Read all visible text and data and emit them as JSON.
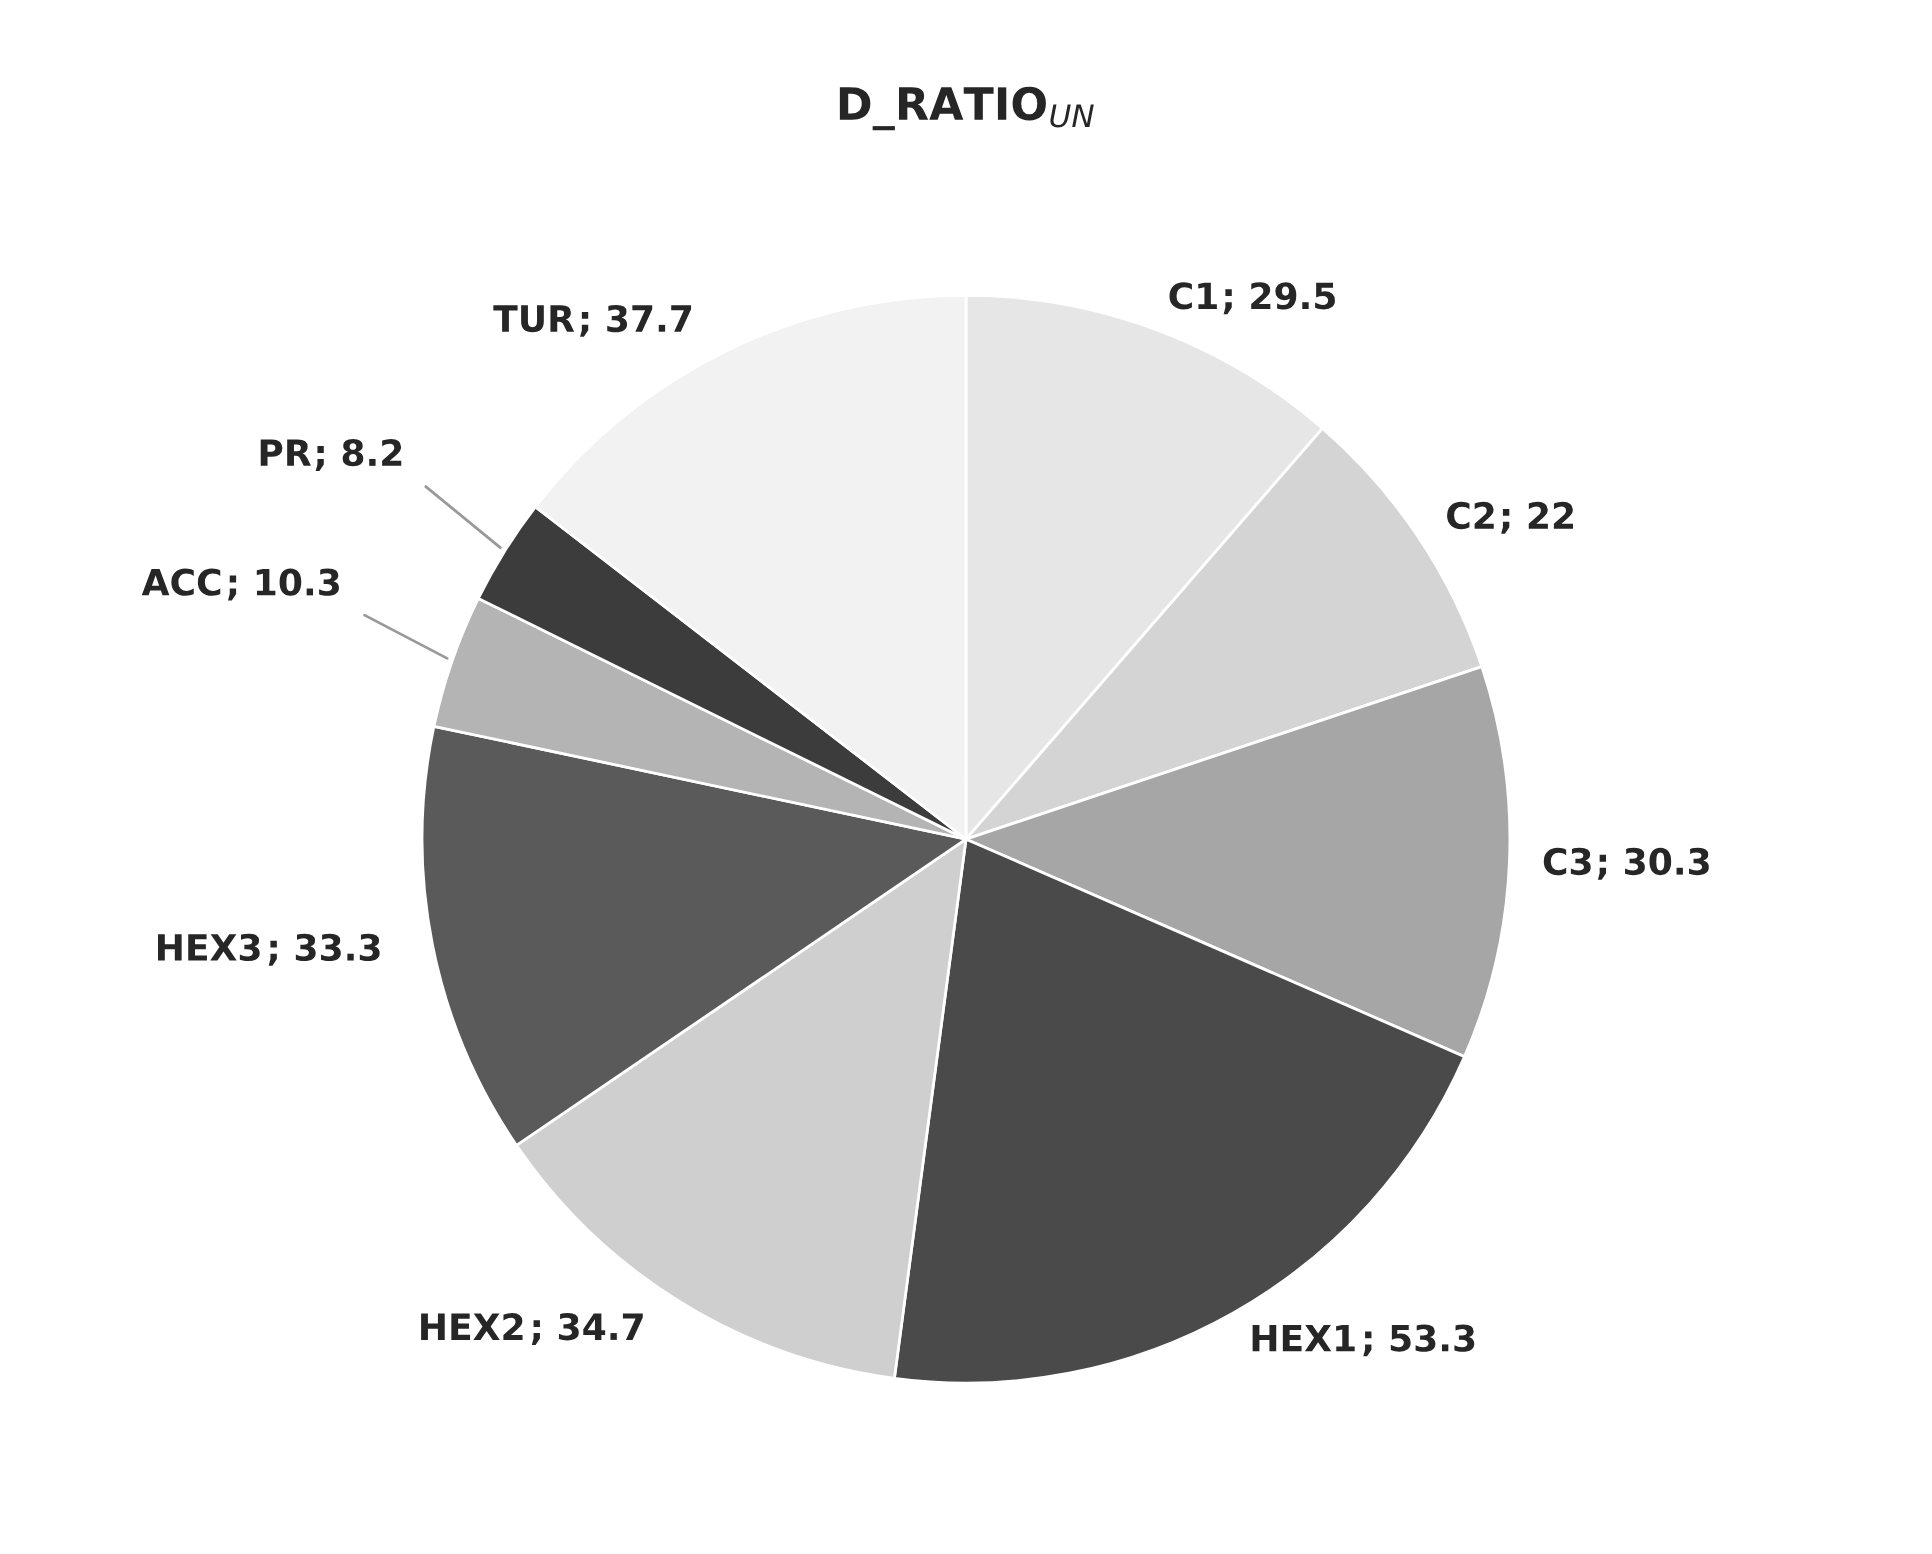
{
  "chart_data": {
    "type": "pie",
    "title": "D_RATIO$_{UN}$",
    "categories": [
      "C1",
      "C2",
      "C3",
      "HEX1",
      "HEX2",
      "HEX3",
      "ACC",
      "PR",
      "TUR"
    ],
    "values": [
      29.5,
      22,
      30.3,
      53.3,
      34.7,
      33.3,
      10.3,
      8.2,
      37.7
    ],
    "colors": [
      "#e6e6e6",
      "#d4d4d4",
      "#a6a6a6",
      "#4a4a4a",
      "#cfcfcf",
      "#5a5a5a",
      "#b4b4b4",
      "#3c3c3c",
      "#f2f2f2"
    ],
    "value_labels": [
      "; 29.5",
      "; 22",
      "; 30.3",
      "; 53.3",
      "; 34.7",
      "; 33.3",
      "; 10.3",
      "; 8.2",
      "; 37.7"
    ]
  }
}
